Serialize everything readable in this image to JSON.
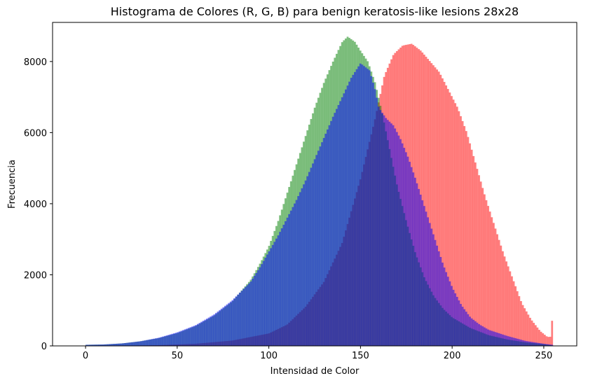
{
  "chart_data": {
    "type": "bar",
    "title": "Histograma de Colores (R, G, B) para benign keratosis-like lesions 28x28",
    "xlabel": "Intensidad de Color",
    "ylabel": "Frecuencia",
    "xlim": [
      -18,
      268
    ],
    "ylim": [
      0,
      9100
    ],
    "xticks": [
      0,
      50,
      100,
      150,
      200,
      250
    ],
    "yticks": [
      0,
      2000,
      4000,
      6000,
      8000
    ],
    "grid": false,
    "bins": 256,
    "alpha": 0.5,
    "series": [
      {
        "color": "#ff0000",
        "points": [
          [
            0,
            0
          ],
          [
            20,
            5
          ],
          [
            40,
            20
          ],
          [
            60,
            60
          ],
          [
            80,
            150
          ],
          [
            100,
            350
          ],
          [
            110,
            600
          ],
          [
            120,
            1100
          ],
          [
            130,
            1800
          ],
          [
            140,
            2900
          ],
          [
            150,
            4700
          ],
          [
            158,
            6400
          ],
          [
            163,
            7600
          ],
          [
            168,
            8200
          ],
          [
            173,
            8450
          ],
          [
            178,
            8500
          ],
          [
            183,
            8300
          ],
          [
            188,
            8000
          ],
          [
            193,
            7700
          ],
          [
            198,
            7200
          ],
          [
            203,
            6700
          ],
          [
            208,
            6000
          ],
          [
            213,
            5100
          ],
          [
            218,
            4200
          ],
          [
            223,
            3400
          ],
          [
            228,
            2600
          ],
          [
            233,
            1900
          ],
          [
            238,
            1200
          ],
          [
            243,
            750
          ],
          [
            248,
            420
          ],
          [
            252,
            250
          ],
          [
            254,
            260
          ],
          [
            255,
            1150
          ]
        ]
      },
      {
        "color": "#008000",
        "points": [
          [
            0,
            30
          ],
          [
            10,
            40
          ],
          [
            20,
            70
          ],
          [
            30,
            130
          ],
          [
            40,
            220
          ],
          [
            50,
            360
          ],
          [
            60,
            560
          ],
          [
            70,
            850
          ],
          [
            80,
            1250
          ],
          [
            90,
            1850
          ],
          [
            95,
            2300
          ],
          [
            100,
            2800
          ],
          [
            105,
            3500
          ],
          [
            110,
            4300
          ],
          [
            115,
            5100
          ],
          [
            120,
            5900
          ],
          [
            125,
            6700
          ],
          [
            130,
            7400
          ],
          [
            135,
            8000
          ],
          [
            140,
            8550
          ],
          [
            143,
            8700
          ],
          [
            147,
            8550
          ],
          [
            150,
            8300
          ],
          [
            154,
            8000
          ],
          [
            158,
            7400
          ],
          [
            162,
            6500
          ],
          [
            166,
            5500
          ],
          [
            170,
            4500
          ],
          [
            175,
            3500
          ],
          [
            180,
            2600
          ],
          [
            185,
            1900
          ],
          [
            190,
            1400
          ],
          [
            195,
            1050
          ],
          [
            200,
            800
          ],
          [
            210,
            500
          ],
          [
            220,
            300
          ],
          [
            230,
            180
          ],
          [
            240,
            100
          ],
          [
            250,
            50
          ],
          [
            255,
            10
          ]
        ]
      },
      {
        "color": "#0000ff",
        "points": [
          [
            0,
            30
          ],
          [
            10,
            40
          ],
          [
            20,
            70
          ],
          [
            30,
            130
          ],
          [
            40,
            230
          ],
          [
            50,
            380
          ],
          [
            60,
            580
          ],
          [
            70,
            880
          ],
          [
            80,
            1280
          ],
          [
            90,
            1800
          ],
          [
            95,
            2200
          ],
          [
            100,
            2650
          ],
          [
            105,
            3100
          ],
          [
            110,
            3600
          ],
          [
            115,
            4100
          ],
          [
            120,
            4650
          ],
          [
            125,
            5250
          ],
          [
            130,
            5850
          ],
          [
            135,
            6450
          ],
          [
            140,
            7000
          ],
          [
            145,
            7550
          ],
          [
            150,
            7950
          ],
          [
            155,
            7750
          ],
          [
            158,
            7200
          ],
          [
            160,
            6700
          ],
          [
            164,
            6400
          ],
          [
            168,
            6200
          ],
          [
            172,
            5800
          ],
          [
            176,
            5300
          ],
          [
            180,
            4700
          ],
          [
            185,
            3900
          ],
          [
            190,
            3100
          ],
          [
            195,
            2300
          ],
          [
            200,
            1650
          ],
          [
            205,
            1150
          ],
          [
            210,
            800
          ],
          [
            215,
            600
          ],
          [
            220,
            450
          ],
          [
            230,
            280
          ],
          [
            240,
            140
          ],
          [
            250,
            60
          ],
          [
            255,
            30
          ]
        ]
      }
    ]
  }
}
